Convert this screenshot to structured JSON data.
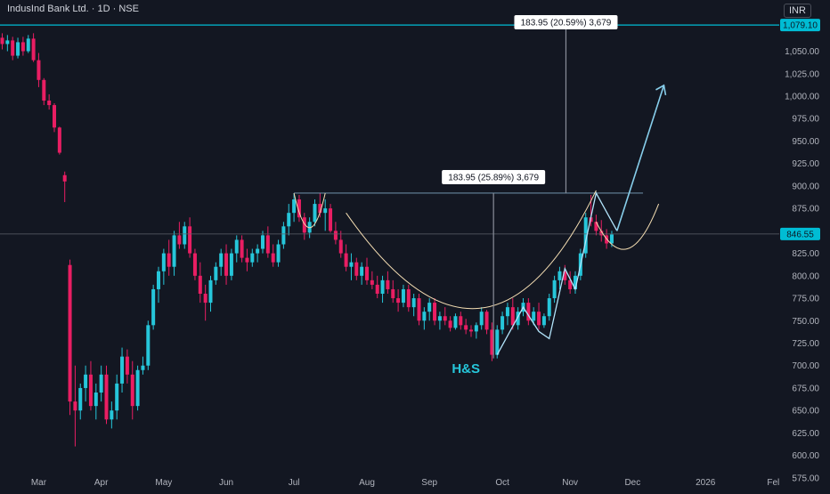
{
  "header": {
    "title": "IndusInd Bank Ltd. · 1D · NSE",
    "currency": "INR"
  },
  "colors": {
    "background": "#131722",
    "up": "#26c6da",
    "down": "#e91e63",
    "text": "#b2b5be",
    "accent_line": "#00bcd4",
    "curve": "#f5deb3",
    "target_arrow": "#87ceeb",
    "zigzag": "#b3e5fc"
  },
  "chart_data": {
    "type": "candlestick",
    "title": "IndusInd Bank Ltd. · 1D · NSE",
    "xlabel": "",
    "ylabel": "",
    "ylim": [
      562,
      1107
    ],
    "y_ticks": [
      "1,050.00",
      "1,025.00",
      "1,000.00",
      "975.00",
      "950.00",
      "925.00",
      "900.00",
      "875.00",
      "850.00",
      "825.00",
      "800.00",
      "775.00",
      "750.00",
      "725.00",
      "700.00",
      "675.00",
      "650.00",
      "625.00",
      "600.00",
      "575.00"
    ],
    "x_ticks": [
      {
        "label": "Mar",
        "idx": 7
      },
      {
        "label": "Apr",
        "idx": 19
      },
      {
        "label": "May",
        "idx": 31
      },
      {
        "label": "Jun",
        "idx": 43
      },
      {
        "label": "Jul",
        "idx": 56
      },
      {
        "label": "Aug",
        "idx": 70
      },
      {
        "label": "Sep",
        "idx": 82
      },
      {
        "label": "Oct",
        "idx": 96
      },
      {
        "label": "Nov",
        "idx": 109
      },
      {
        "label": "Dec",
        "idx": 121
      },
      {
        "label": "2026",
        "idx": 135
      },
      {
        "label": "Fel",
        "idx": 148
      }
    ],
    "price_labels": {
      "top_level": "1,079.10",
      "current": "846.55",
      "top_level_value": 1079.1,
      "current_value": 846.55,
      "neckline_value": 892
    },
    "annotations": {
      "pattern_label": "H&S",
      "measure_lower": "183.95 (25.89%) 3,679",
      "measure_upper": "183.95 (20.59%) 3,679"
    },
    "candles": [
      [
        1065,
        1070,
        1052,
        1058
      ],
      [
        1058,
        1068,
        1050,
        1062
      ],
      [
        1062,
        1066,
        1040,
        1045
      ],
      [
        1045,
        1065,
        1042,
        1060
      ],
      [
        1060,
        1066,
        1045,
        1050
      ],
      [
        1050,
        1068,
        1048,
        1064
      ],
      [
        1064,
        1070,
        1038,
        1040
      ],
      [
        1040,
        1048,
        1010,
        1018
      ],
      [
        1018,
        1020,
        990,
        995
      ],
      [
        995,
        1002,
        985,
        990
      ],
      [
        990,
        992,
        960,
        965
      ],
      [
        965,
        966,
        935,
        937
      ],
      [
        912,
        916,
        882,
        905
      ],
      [
        812,
        818,
        645,
        660
      ],
      [
        660,
        700,
        610,
        650
      ],
      [
        650,
        680,
        640,
        675
      ],
      [
        675,
        700,
        660,
        690
      ],
      [
        690,
        705,
        650,
        655
      ],
      [
        655,
        680,
        640,
        670
      ],
      [
        670,
        700,
        660,
        690
      ],
      [
        690,
        700,
        635,
        640
      ],
      [
        640,
        660,
        630,
        650
      ],
      [
        650,
        690,
        640,
        680
      ],
      [
        680,
        720,
        670,
        710
      ],
      [
        710,
        718,
        680,
        690
      ],
      [
        690,
        705,
        640,
        655
      ],
      [
        655,
        700,
        650,
        695
      ],
      [
        695,
        710,
        690,
        700
      ],
      [
        700,
        750,
        695,
        745
      ],
      [
        745,
        790,
        740,
        785
      ],
      [
        785,
        810,
        770,
        805
      ],
      [
        805,
        830,
        790,
        825
      ],
      [
        825,
        840,
        800,
        810
      ],
      [
        810,
        850,
        800,
        845
      ],
      [
        845,
        860,
        830,
        835
      ],
      [
        835,
        860,
        830,
        855
      ],
      [
        855,
        865,
        820,
        825
      ],
      [
        825,
        830,
        795,
        800
      ],
      [
        800,
        815,
        770,
        780
      ],
      [
        780,
        790,
        750,
        770
      ],
      [
        770,
        800,
        760,
        795
      ],
      [
        795,
        815,
        790,
        810
      ],
      [
        810,
        830,
        800,
        825
      ],
      [
        825,
        835,
        790,
        800
      ],
      [
        800,
        830,
        795,
        825
      ],
      [
        825,
        845,
        815,
        840
      ],
      [
        840,
        845,
        815,
        820
      ],
      [
        820,
        830,
        805,
        815
      ],
      [
        815,
        830,
        810,
        825
      ],
      [
        825,
        835,
        815,
        830
      ],
      [
        830,
        850,
        825,
        845
      ],
      [
        845,
        855,
        820,
        825
      ],
      [
        825,
        835,
        810,
        815
      ],
      [
        815,
        840,
        810,
        835
      ],
      [
        835,
        860,
        830,
        855
      ],
      [
        855,
        880,
        845,
        870
      ],
      [
        870,
        892,
        860,
        885
      ],
      [
        885,
        890,
        860,
        865
      ],
      [
        865,
        870,
        840,
        848
      ],
      [
        848,
        865,
        842,
        860
      ],
      [
        860,
        885,
        855,
        880
      ],
      [
        880,
        892,
        865,
        870
      ],
      [
        870,
        885,
        850,
        875
      ],
      [
        875,
        880,
        848,
        850
      ],
      [
        850,
        860,
        835,
        840
      ],
      [
        840,
        850,
        820,
        825
      ],
      [
        825,
        835,
        805,
        810
      ],
      [
        810,
        825,
        795,
        815
      ],
      [
        815,
        820,
        795,
        800
      ],
      [
        800,
        815,
        790,
        810
      ],
      [
        810,
        820,
        790,
        795
      ],
      [
        795,
        805,
        785,
        790
      ],
      [
        790,
        800,
        775,
        780
      ],
      [
        780,
        800,
        770,
        795
      ],
      [
        795,
        805,
        780,
        785
      ],
      [
        785,
        795,
        770,
        775
      ],
      [
        775,
        785,
        760,
        770
      ],
      [
        770,
        790,
        765,
        785
      ],
      [
        785,
        790,
        760,
        765
      ],
      [
        765,
        780,
        755,
        775
      ],
      [
        775,
        780,
        745,
        750
      ],
      [
        750,
        765,
        740,
        760
      ],
      [
        760,
        775,
        750,
        770
      ],
      [
        770,
        775,
        745,
        750
      ],
      [
        750,
        760,
        740,
        755
      ],
      [
        755,
        765,
        745,
        750
      ],
      [
        750,
        755,
        738,
        742
      ],
      [
        742,
        758,
        740,
        755
      ],
      [
        755,
        760,
        740,
        745
      ],
      [
        745,
        752,
        735,
        740
      ],
      [
        740,
        745,
        732,
        738
      ],
      [
        738,
        748,
        730,
        745
      ],
      [
        745,
        765,
        740,
        760
      ],
      [
        760,
        762,
        735,
        740
      ],
      [
        740,
        748,
        705,
        712
      ],
      [
        712,
        745,
        708,
        740
      ],
      [
        740,
        760,
        735,
        755
      ],
      [
        755,
        770,
        745,
        765
      ],
      [
        765,
        775,
        740,
        745
      ],
      [
        745,
        765,
        740,
        760
      ],
      [
        760,
        775,
        755,
        770
      ],
      [
        770,
        775,
        745,
        750
      ],
      [
        750,
        765,
        745,
        760
      ],
      [
        760,
        770,
        740,
        745
      ],
      [
        745,
        758,
        742,
        755
      ],
      [
        755,
        780,
        750,
        775
      ],
      [
        775,
        800,
        770,
        795
      ],
      [
        795,
        810,
        785,
        805
      ],
      [
        805,
        812,
        790,
        795
      ],
      [
        795,
        805,
        780,
        785
      ],
      [
        785,
        805,
        780,
        800
      ],
      [
        800,
        830,
        795,
        825
      ],
      [
        825,
        870,
        820,
        865
      ],
      [
        865,
        890,
        855,
        860
      ],
      [
        860,
        868,
        845,
        850
      ],
      [
        850,
        862,
        838,
        845
      ],
      [
        845,
        852,
        830,
        836
      ],
      [
        836,
        850,
        832,
        846
      ]
    ]
  }
}
